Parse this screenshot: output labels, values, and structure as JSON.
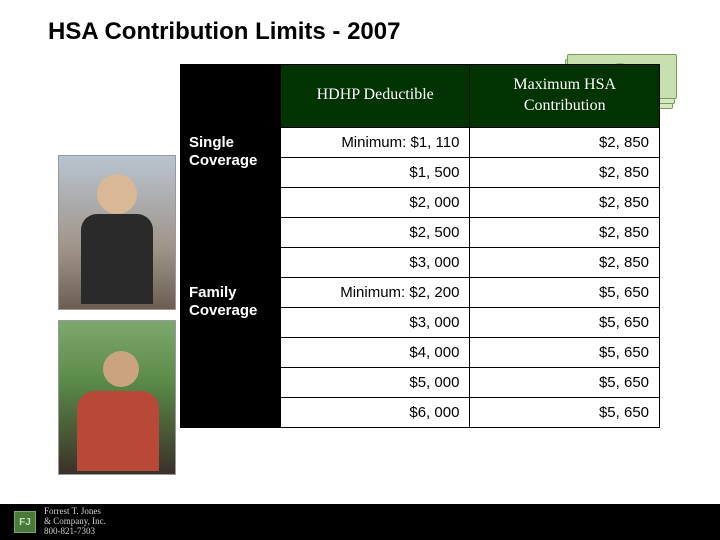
{
  "title": "HSA Contribution Limits - 2007",
  "headers": {
    "hdhp": "HDHP Deductible",
    "max": "Maximum HSA Contribution"
  },
  "row_labels": {
    "single": "Single Coverage",
    "family": "Family Coverage"
  },
  "single_rows": [
    {
      "deductible": "Minimum: $1, 110",
      "max": "$2, 850"
    },
    {
      "deductible": "$1, 500",
      "max": "$2, 850"
    },
    {
      "deductible": "$2, 000",
      "max": "$2, 850"
    },
    {
      "deductible": "$2, 500",
      "max": "$2, 850"
    },
    {
      "deductible": "$3, 000",
      "max": "$2, 850"
    }
  ],
  "family_rows": [
    {
      "deductible": "Minimum: $2, 200",
      "max": "$5, 650"
    },
    {
      "deductible": "$3, 000",
      "max": "$5, 650"
    },
    {
      "deductible": "$4, 000",
      "max": "$5, 650"
    },
    {
      "deductible": "$5, 000",
      "max": "$5, 650"
    },
    {
      "deductible": "$6, 000",
      "max": "$5, 650"
    }
  ],
  "footer": {
    "logo": "FJ",
    "line1": "Forrest T. Jones",
    "line2": "& Company, Inc.",
    "line3": "800-821-7303"
  },
  "colors": {
    "header_bg": "#003300",
    "label_bg": "#000000",
    "border": "#000000",
    "page_bg": "#ffffff"
  },
  "fonts": {
    "title_size_pt": 18,
    "header_family": "Georgia",
    "cell_size_pt": 11
  }
}
